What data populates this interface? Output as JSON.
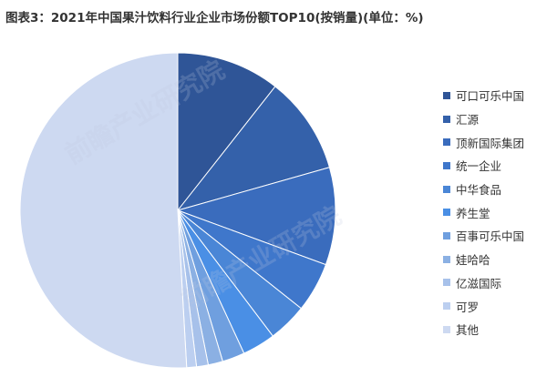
{
  "chart_data": {
    "type": "pie",
    "title": "图表3：2021年中国果汁饮料行业企业市场份额TOP10(按销量)(单位：%)",
    "slices": [
      {
        "label": "可口可乐中国",
        "value": 10.6,
        "color": "#2f5597"
      },
      {
        "label": "汇源",
        "value": 10.0,
        "color": "#3461aa"
      },
      {
        "label": "顶新国际集团",
        "value": 10.0,
        "color": "#3a6cbd"
      },
      {
        "label": "统一企业",
        "value": 5.1,
        "color": "#3f77cb"
      },
      {
        "label": "中华食品",
        "value": 4.0,
        "color": "#4a86d6"
      },
      {
        "label": "养生堂",
        "value": 3.4,
        "color": "#4a8fe5"
      },
      {
        "label": "百事可乐中国",
        "value": 2.3,
        "color": "#6f9fdf"
      },
      {
        "label": "娃哈哈",
        "value": 1.5,
        "color": "#8bb0e3"
      },
      {
        "label": "亿滋国际",
        "value": 1.2,
        "color": "#a7c1ea"
      },
      {
        "label": "可罗",
        "value": 1.0,
        "color": "#bccff0"
      },
      {
        "label": "其他",
        "value": 50.9,
        "color": "#cdd9f1"
      }
    ]
  },
  "watermark_text": "前瞻产业研究院"
}
